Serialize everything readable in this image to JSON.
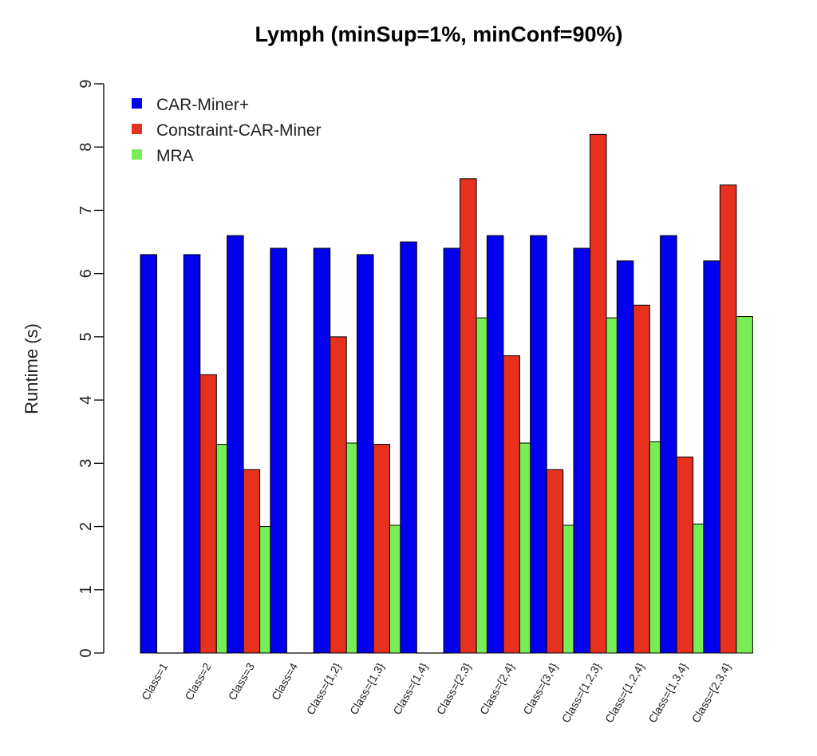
{
  "chart_data": {
    "type": "bar",
    "title": "Lymph (minSup=1%, minConf=90%)",
    "xlabel": "",
    "ylabel": "Runtime (s)",
    "ylim": [
      0,
      9
    ],
    "yticks": [
      "0",
      "1",
      "2",
      "3",
      "4",
      "5",
      "6",
      "7",
      "8",
      "9"
    ],
    "categories": [
      "Class=1",
      "Class=2",
      "Class=3",
      "Class=4",
      "Class={1,2}",
      "Class={1,3}",
      "Class={1,4}",
      "Class={2,3}",
      "Class={2,4}",
      "Class={3,4}",
      "Class={1,2,3}",
      "Class={1,2,4}",
      "Class={1,3,4}",
      "Class={2,3,4}"
    ],
    "series": [
      {
        "name": "CAR-Miner+",
        "color": "#0000ee",
        "values": [
          6.3,
          6.3,
          6.6,
          6.4,
          6.4,
          6.3,
          6.5,
          6.4,
          6.6,
          6.6,
          6.4,
          6.2,
          6.6,
          6.2
        ]
      },
      {
        "name": "Constraint-CAR-Miner",
        "color": "#e8301e",
        "values": [
          0,
          4.4,
          2.9,
          0,
          5.0,
          3.3,
          0,
          7.5,
          4.7,
          2.9,
          8.2,
          5.5,
          3.1,
          7.4
        ]
      },
      {
        "name": "MRA",
        "color": "#77ee55",
        "values": [
          0,
          3.3,
          2.0,
          0,
          3.32,
          2.02,
          0,
          5.3,
          3.32,
          2.02,
          5.3,
          3.34,
          2.04,
          5.32
        ]
      }
    ],
    "legend_position": "top-left",
    "grid": false
  }
}
